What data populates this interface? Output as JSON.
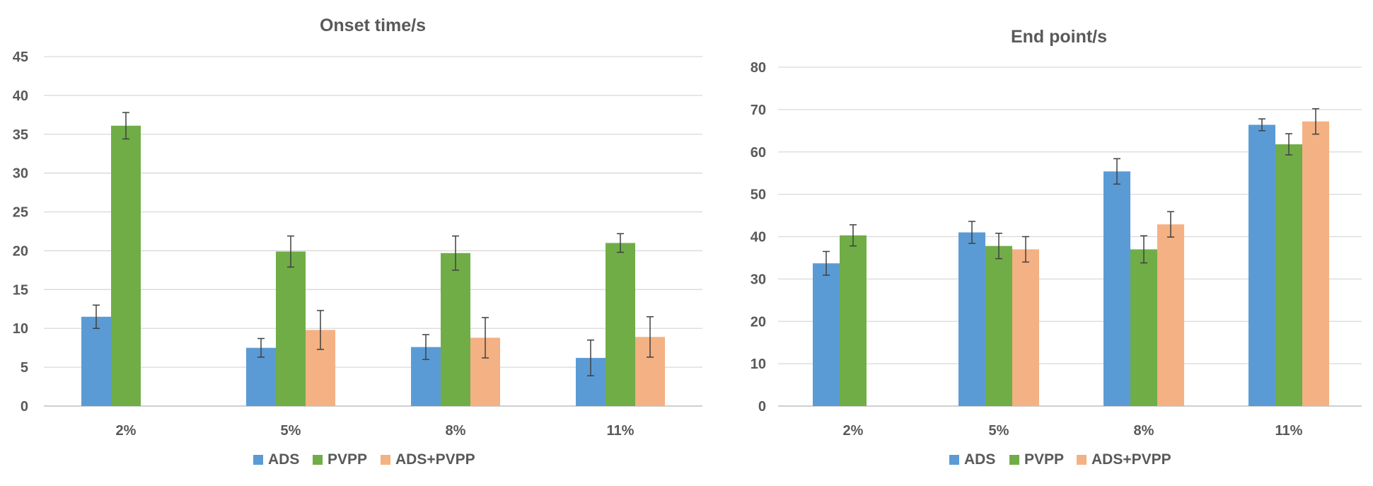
{
  "chart_data": [
    {
      "type": "bar",
      "title": "Onset time/s",
      "xlabel": "",
      "ylabel": "",
      "categories": [
        "2%",
        "5%",
        "8%",
        "11%"
      ],
      "ylim": [
        0,
        45
      ],
      "yticks": [
        0,
        5,
        10,
        15,
        20,
        25,
        30,
        35,
        40,
        45
      ],
      "grid": true,
      "legend_position": "bottom",
      "series": [
        {
          "name": "ADS",
          "color": "#5b9bd5",
          "values": [
            11.5,
            7.5,
            7.6,
            6.2
          ],
          "errors": [
            1.5,
            1.2,
            1.6,
            2.3
          ]
        },
        {
          "name": "PVPP",
          "color": "#70ad47",
          "values": [
            36.1,
            19.9,
            19.7,
            21.0
          ],
          "errors": [
            1.7,
            2.0,
            2.2,
            1.2
          ]
        },
        {
          "name": "ADS+PVPP",
          "color": "#f4b183",
          "values": [
            null,
            9.8,
            8.8,
            8.9
          ],
          "errors": [
            null,
            2.5,
            2.6,
            2.6
          ]
        }
      ]
    },
    {
      "type": "bar",
      "title": "End point/s",
      "xlabel": "",
      "ylabel": "",
      "categories": [
        "2%",
        "5%",
        "8%",
        "11%"
      ],
      "ylim": [
        0,
        80
      ],
      "yticks": [
        0,
        10,
        20,
        30,
        40,
        50,
        60,
        70,
        80
      ],
      "grid": true,
      "legend_position": "bottom",
      "series": [
        {
          "name": "ADS",
          "color": "#5b9bd5",
          "values": [
            33.7,
            41.0,
            55.4,
            66.4
          ],
          "errors": [
            2.8,
            2.6,
            3.0,
            1.4
          ]
        },
        {
          "name": "PVPP",
          "color": "#70ad47",
          "values": [
            40.3,
            37.8,
            37.0,
            61.8
          ],
          "errors": [
            2.5,
            3.0,
            3.2,
            2.5
          ]
        },
        {
          "name": "ADS+PVPP",
          "color": "#f4b183",
          "values": [
            null,
            37.0,
            42.9,
            67.2
          ],
          "errors": [
            null,
            3.0,
            3.0,
            3.0
          ]
        }
      ]
    }
  ]
}
